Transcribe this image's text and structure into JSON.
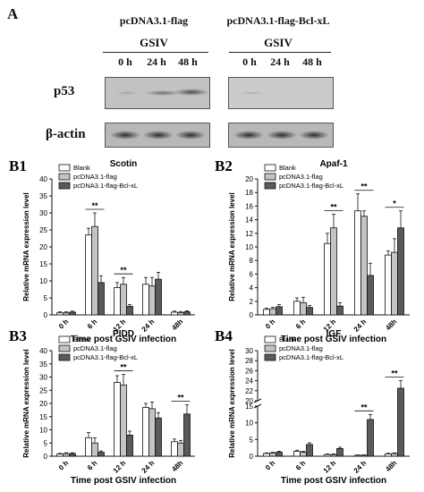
{
  "panel_a": {
    "letter": "A",
    "groups": [
      {
        "title": "pcDNA3.1-flag",
        "condition": "GSIV",
        "timepoints": [
          "0 h",
          "24 h",
          "48 h"
        ]
      },
      {
        "title": "pcDNA3.1-flag-Bcl-xL",
        "condition": "GSIV",
        "timepoints": [
          "0 h",
          "24 h",
          "48 h"
        ]
      }
    ],
    "proteins": [
      "p53",
      "β-actin"
    ]
  },
  "chart_data": [
    {
      "panel": "B1",
      "type": "bar",
      "title": "Scotin",
      "xlabel": "Time post GSIV infection",
      "ylabel": "Relative mRNA expression level",
      "categories": [
        "0 h",
        "6 h",
        "12 h",
        "24 h",
        "48h"
      ],
      "ylim": [
        0,
        40
      ],
      "yticks": [
        0,
        5,
        10,
        15,
        20,
        25,
        30,
        35,
        40
      ],
      "series": [
        {
          "name": "Blank",
          "values": [
            0.6,
            23.5,
            8,
            9,
            0.8
          ],
          "errors": [
            0.3,
            2,
            1.5,
            2,
            0.3
          ]
        },
        {
          "name": "pcDNA3.1-flag",
          "values": [
            0.6,
            26,
            9,
            8.5,
            0.7
          ],
          "errors": [
            0.3,
            4,
            2,
            2.5,
            0.3
          ]
        },
        {
          "name": "pcDNA3.1-flag-Bcl-xL",
          "values": [
            0.8,
            9.5,
            2.5,
            10.5,
            0.9
          ],
          "errors": [
            0.3,
            2,
            0.5,
            2,
            0.3
          ]
        }
      ],
      "annotations": [
        {
          "category_index": 1,
          "text": "**"
        },
        {
          "category_index": 2,
          "text": "**"
        }
      ]
    },
    {
      "panel": "B2",
      "type": "bar",
      "title": "Apaf-1",
      "xlabel": "Time post GSIV infection",
      "ylabel": "Relative mRNA expression level",
      "categories": [
        "0 h",
        "6 h",
        "12 h",
        "24 h",
        "48h"
      ],
      "ylim": [
        0,
        20
      ],
      "yticks": [
        0,
        2,
        4,
        6,
        8,
        10,
        12,
        14,
        16,
        18,
        20
      ],
      "series": [
        {
          "name": "Blank",
          "values": [
            0.8,
            2,
            10.5,
            15.3,
            8.8
          ],
          "errors": [
            0.2,
            0.5,
            1.5,
            2.5,
            0.6
          ]
        },
        {
          "name": "pcDNA3.1-flag",
          "values": [
            0.9,
            1.8,
            12.8,
            14.5,
            9.2
          ],
          "errors": [
            0.2,
            0.8,
            2,
            0.8,
            2
          ]
        },
        {
          "name": "pcDNA3.1-flag-Bcl-xL",
          "values": [
            1.2,
            1.1,
            1.3,
            5.8,
            12.8
          ],
          "errors": [
            0.3,
            0.3,
            0.5,
            1.8,
            2.5
          ]
        }
      ],
      "annotations": [
        {
          "category_index": 2,
          "text": "**"
        },
        {
          "category_index": 3,
          "text": "**"
        },
        {
          "category_index": 4,
          "text": "*"
        }
      ]
    },
    {
      "panel": "B3",
      "type": "bar",
      "title": "PIDD",
      "xlabel": "Time post GSIV infection",
      "ylabel": "Relative mRNA expression level",
      "categories": [
        "0 h",
        "6 h",
        "12 h",
        "24 h",
        "48h"
      ],
      "ylim": [
        0,
        40
      ],
      "yticks": [
        0,
        5,
        10,
        15,
        20,
        25,
        30,
        35,
        40
      ],
      "series": [
        {
          "name": "Blank",
          "values": [
            0.8,
            7,
            28,
            18.5,
            5.5
          ],
          "errors": [
            0.3,
            2,
            2.5,
            1.5,
            1
          ]
        },
        {
          "name": "pcDNA3.1-flag",
          "values": [
            1,
            5,
            27,
            18,
            5
          ],
          "errors": [
            0.3,
            2,
            4,
            2.5,
            1
          ]
        },
        {
          "name": "pcDNA3.1-flag-Bcl-xL",
          "values": [
            1,
            1.5,
            8,
            14.5,
            16
          ],
          "errors": [
            0.3,
            0.5,
            1.5,
            2,
            3.5
          ]
        }
      ],
      "annotations": [
        {
          "category_index": 2,
          "text": "**"
        },
        {
          "category_index": 4,
          "text": "**"
        }
      ]
    },
    {
      "panel": "B4",
      "type": "bar",
      "title": "IGF",
      "xlabel": "Time post GSIV infection",
      "ylabel": "Relative mRNA expression level",
      "categories": [
        "0 h",
        "6 h",
        "12 h",
        "24 h",
        "48h"
      ],
      "axis_break": {
        "lower": [
          0,
          15
        ],
        "upper": [
          20,
          30
        ]
      },
      "yticks": [
        0,
        5,
        10,
        15,
        20,
        22,
        24,
        26,
        28,
        30
      ],
      "series": [
        {
          "name": "Blank",
          "values": [
            0.8,
            1.5,
            0.5,
            0.3,
            0.7
          ],
          "errors": [
            0.2,
            0.3,
            0.2,
            0.1,
            0.2
          ]
        },
        {
          "name": "pcDNA3.1-flag",
          "values": [
            1,
            1.2,
            0.5,
            0.3,
            0.8
          ],
          "errors": [
            0.2,
            0.3,
            0.2,
            0.1,
            0.2
          ]
        },
        {
          "name": "pcDNA3.1-flag-Bcl-xL",
          "values": [
            1.2,
            3.5,
            2.3,
            11,
            22.5
          ],
          "errors": [
            0.3,
            0.5,
            0.4,
            1.5,
            1.5
          ]
        }
      ],
      "annotations": [
        {
          "category_index": 3,
          "text": "**"
        },
        {
          "category_index": 4,
          "text": "**"
        }
      ]
    }
  ]
}
